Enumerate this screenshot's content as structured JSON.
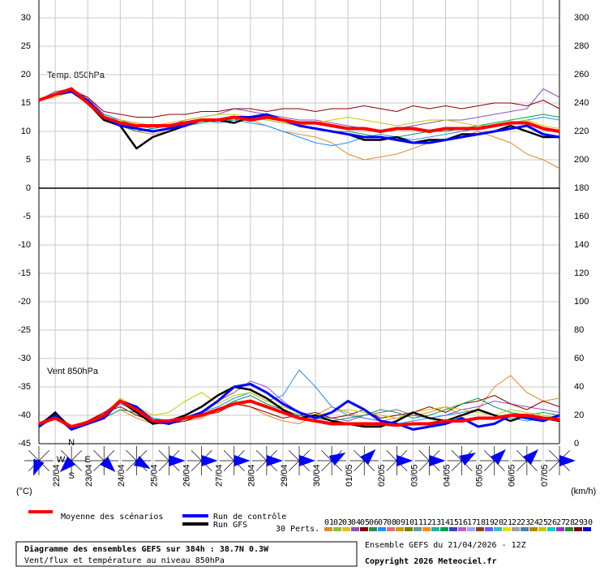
{
  "chart_data": {
    "type": "line",
    "temp_label": "Temp. 850hPa",
    "wind_label": "Vent 850hPa",
    "y_unit": "(°C)",
    "y2_unit": "(km/h)",
    "categories": [
      null,
      "22/04",
      null,
      "23/04",
      null,
      "24/04",
      null,
      "25/04",
      null,
      "26/04",
      null,
      "27/04",
      null,
      "28/04",
      null,
      "29/04",
      null,
      "30/04",
      null,
      "01/05",
      null,
      "02/05",
      null,
      "03/05",
      null,
      "04/05",
      null,
      "05/05",
      null,
      "06/05",
      null,
      "07/05",
      null
    ],
    "ylim": [
      -45,
      30
    ],
    "yticks": [
      -45,
      -40,
      -35,
      -30,
      -25,
      -20,
      -15,
      -10,
      -5,
      0,
      5,
      10,
      15,
      20,
      25,
      30
    ],
    "y2lim": [
      0,
      300
    ],
    "y2ticks": [
      0,
      20,
      40,
      60,
      80,
      100,
      120,
      140,
      160,
      180,
      200,
      220,
      240,
      260,
      280,
      300
    ],
    "grid": true,
    "series": [
      {
        "name": "Moyenne des scénarios",
        "color": "#ff0000",
        "values": [
          15.5,
          16.5,
          17.5,
          15,
          12.5,
          11.5,
          11,
          11,
          11,
          11.5,
          12,
          12,
          12.5,
          12,
          12.5,
          12,
          11.5,
          11.5,
          11,
          10.5,
          10.5,
          10,
          10.5,
          10.5,
          10,
          10.5,
          10.5,
          10.5,
          11,
          11.5,
          11.5,
          10.5,
          10
        ],
        "wind_values": [
          14,
          18,
          12,
          15,
          20,
          30,
          24,
          16,
          16,
          18,
          20,
          24,
          28,
          30,
          26,
          22,
          18,
          16,
          14,
          14,
          14,
          14,
          13,
          14,
          14,
          16,
          16,
          18,
          18,
          20,
          20,
          18,
          17
        ]
      },
      {
        "name": "Run de contrôle",
        "color": "#0000ff",
        "values": [
          15.5,
          16.5,
          17,
          15.5,
          12.5,
          11,
          10.5,
          10,
          10.5,
          11,
          12,
          12,
          12.5,
          12.5,
          13,
          12,
          11,
          10.5,
          10,
          9.5,
          9,
          9,
          8.5,
          8,
          8,
          8.5,
          9,
          9.5,
          10,
          10.5,
          11,
          9.5,
          9
        ],
        "wind_values": [
          12,
          20,
          10,
          14,
          18,
          30,
          26,
          16,
          14,
          18,
          22,
          30,
          40,
          42,
          36,
          28,
          22,
          18,
          22,
          30,
          24,
          16,
          14,
          10,
          12,
          14,
          18,
          12,
          14,
          20,
          18,
          16,
          20
        ]
      },
      {
        "name": "Run GFS",
        "color": "#000000",
        "values": [
          15.5,
          16.5,
          17,
          15,
          12,
          11,
          7,
          9,
          10,
          11,
          12,
          12,
          11.5,
          12.5,
          12.5,
          12,
          11,
          10.5,
          10,
          9.5,
          8.5,
          8.5,
          9,
          8,
          8.5,
          8.5,
          9.5,
          9.5,
          10,
          11,
          10,
          9,
          9
        ],
        "wind_values": [
          12,
          22,
          10,
          14,
          20,
          30,
          22,
          14,
          16,
          20,
          26,
          34,
          40,
          38,
          32,
          24,
          18,
          20,
          16,
          14,
          12,
          12,
          16,
          22,
          18,
          16,
          20,
          24,
          20,
          16,
          20,
          18,
          16
        ]
      }
    ],
    "members_label": "30 Perts.",
    "members": [
      {
        "name": "01",
        "color": "#e08a30",
        "values": [
          15.5,
          17,
          17.5,
          15,
          12,
          11,
          10,
          9.5,
          10,
          11,
          11.5,
          12,
          12.5,
          12,
          11,
          10,
          9.5,
          9,
          8,
          6,
          5,
          5.5,
          6,
          7,
          8,
          8.5,
          9,
          10,
          9,
          8,
          6,
          5,
          3.5
        ],
        "wind_values": [
          12,
          18,
          10,
          14,
          18,
          24,
          18,
          14,
          14,
          16,
          18,
          24,
          30,
          26,
          20,
          16,
          14,
          20,
          26,
          22,
          18,
          16,
          18,
          20,
          22,
          26,
          20,
          24,
          40,
          48,
          36,
          30,
          32
        ]
      },
      {
        "name": "02",
        "color": "#90c040"
      },
      {
        "name": "03",
        "color": "#e0c020"
      },
      {
        "name": "04",
        "color": "#9050c0",
        "values": [
          15.5,
          17,
          17.5,
          16,
          13,
          12,
          11.5,
          11,
          11,
          12,
          12.5,
          13,
          14,
          13.5,
          13,
          12.5,
          12,
          12,
          11.5,
          11,
          10.5,
          10,
          10.5,
          11,
          11.5,
          12,
          12,
          12.5,
          13,
          13.5,
          14,
          17.5,
          16
        ],
        "wind_values": [
          14,
          22,
          12,
          16,
          22,
          30,
          26,
          18,
          16,
          18,
          22,
          30,
          36,
          44,
          40,
          30,
          22,
          20,
          18,
          16,
          20,
          22,
          24,
          20,
          18,
          20,
          24,
          26,
          30,
          28,
          26,
          24,
          22
        ]
      },
      {
        "name": "05",
        "color": "#8b0000",
        "values": [
          15.5,
          16.5,
          17,
          16,
          13.5,
          13,
          12.5,
          12.5,
          13,
          13,
          13.5,
          13.5,
          14,
          14,
          13.5,
          14,
          14,
          13.5,
          14,
          14,
          14.5,
          14,
          13.5,
          14.5,
          14,
          14.5,
          14,
          14.5,
          15,
          15,
          14.5,
          15.5,
          14
        ],
        "wind_values": [
          14,
          20,
          12,
          16,
          22,
          26,
          20,
          16,
          14,
          16,
          20,
          22,
          28,
          26,
          22,
          18,
          20,
          22,
          18,
          20,
          24,
          18,
          20,
          22,
          26,
          22,
          28,
          30,
          34,
          28,
          24,
          30,
          26
        ]
      },
      {
        "name": "06",
        "color": "#2e8b57"
      },
      {
        "name": "07",
        "color": "#1e90ff",
        "values": [
          15.5,
          16,
          17,
          15.5,
          13,
          12,
          11,
          10.5,
          11,
          11.5,
          12,
          11.5,
          12,
          11.5,
          11,
          10,
          9,
          8,
          7.5,
          8,
          9,
          9.5,
          9,
          8.5,
          9,
          9.5,
          10,
          10.5,
          11,
          11.5,
          12,
          12.5,
          12
        ],
        "wind_values": [
          12,
          18,
          12,
          14,
          20,
          28,
          24,
          18,
          16,
          18,
          22,
          26,
          32,
          36,
          30,
          34,
          52,
          40,
          26,
          20,
          18,
          16,
          14,
          16,
          18,
          20,
          22,
          24,
          20,
          18,
          16,
          18,
          20
        ]
      },
      {
        "name": "08",
        "color": "#e07070"
      },
      {
        "name": "09",
        "color": "#c8a000"
      },
      {
        "name": "10",
        "color": "#808000"
      },
      {
        "name": "11",
        "color": "#60a0a0"
      },
      {
        "name": "12",
        "color": "#ff8c00"
      },
      {
        "name": "13",
        "color": "#20b2aa"
      },
      {
        "name": "14",
        "color": "#00a050",
        "values": [
          15.5,
          16.5,
          17.5,
          15.5,
          12.5,
          11,
          10,
          10.5,
          11,
          11,
          11.5,
          12,
          12,
          12.5,
          12,
          11.5,
          11,
          10.5,
          10,
          10,
          9.5,
          9,
          9,
          9.5,
          10,
          10,
          10.5,
          11,
          11.5,
          12,
          12.5,
          13,
          12.5
        ],
        "wind_values": [
          12,
          20,
          12,
          14,
          18,
          24,
          22,
          16,
          16,
          18,
          20,
          24,
          30,
          34,
          28,
          24,
          20,
          18,
          16,
          18,
          20,
          24,
          22,
          18,
          20,
          24,
          28,
          32,
          26,
          22,
          20,
          22,
          20
        ]
      },
      {
        "name": "15",
        "color": "#4040c0"
      },
      {
        "name": "16",
        "color": "#c060c0"
      },
      {
        "name": "17",
        "color": "#a0a0ff"
      },
      {
        "name": "18",
        "color": "#8b4513"
      },
      {
        "name": "19",
        "color": "#6060ff"
      },
      {
        "name": "20",
        "color": "#30c0c0"
      },
      {
        "name": "21",
        "color": "#e0e000"
      },
      {
        "name": "22",
        "color": "#a0a0a0"
      },
      {
        "name": "23",
        "color": "#4682b4"
      },
      {
        "name": "24",
        "color": "#b8860b"
      },
      {
        "name": "25",
        "color": "#c8c800",
        "values": [
          15.5,
          16,
          17,
          15,
          12.5,
          12,
          11.5,
          11,
          11.5,
          12,
          12.5,
          13,
          13,
          12.5,
          12,
          11.5,
          11,
          11.5,
          12,
          12.5,
          12,
          11.5,
          11,
          11.5,
          12,
          12,
          11.5,
          11,
          11,
          11.5,
          12,
          11,
          10.5
        ],
        "wind_values": [
          14,
          18,
          10,
          14,
          20,
          32,
          26,
          20,
          22,
          30,
          36,
          28,
          34,
          36,
          30,
          26,
          22,
          20,
          22,
          24,
          22,
          20,
          18,
          22,
          24,
          26,
          24,
          22,
          20,
          24,
          22,
          20,
          18
        ]
      },
      {
        "name": "26",
        "color": "#00ced1"
      },
      {
        "name": "27",
        "color": "#9932cc"
      },
      {
        "name": "28",
        "color": "#228b22"
      },
      {
        "name": "29",
        "color": "#800000"
      },
      {
        "name": "30",
        "color": "#0000cd"
      }
    ],
    "wind_rose_directions": [
      200,
      225,
      135,
      120,
      90,
      90,
      90,
      90,
      90,
      60,
      45,
      90,
      90,
      60,
      45,
      45,
      90
    ],
    "compass": {
      "n": "N",
      "e": "E",
      "s": "S",
      "w": "W"
    },
    "footer": {
      "title": "Diagramme des ensembles GEFS sur 384h : 38.7N 0.3W",
      "subtitle": "Vent/flux et température au niveau 850hPa",
      "run": "Ensemble GEFS du 21/04/2026 - 12Z",
      "copyright": "Copyright 2026 Meteociel.fr"
    }
  }
}
